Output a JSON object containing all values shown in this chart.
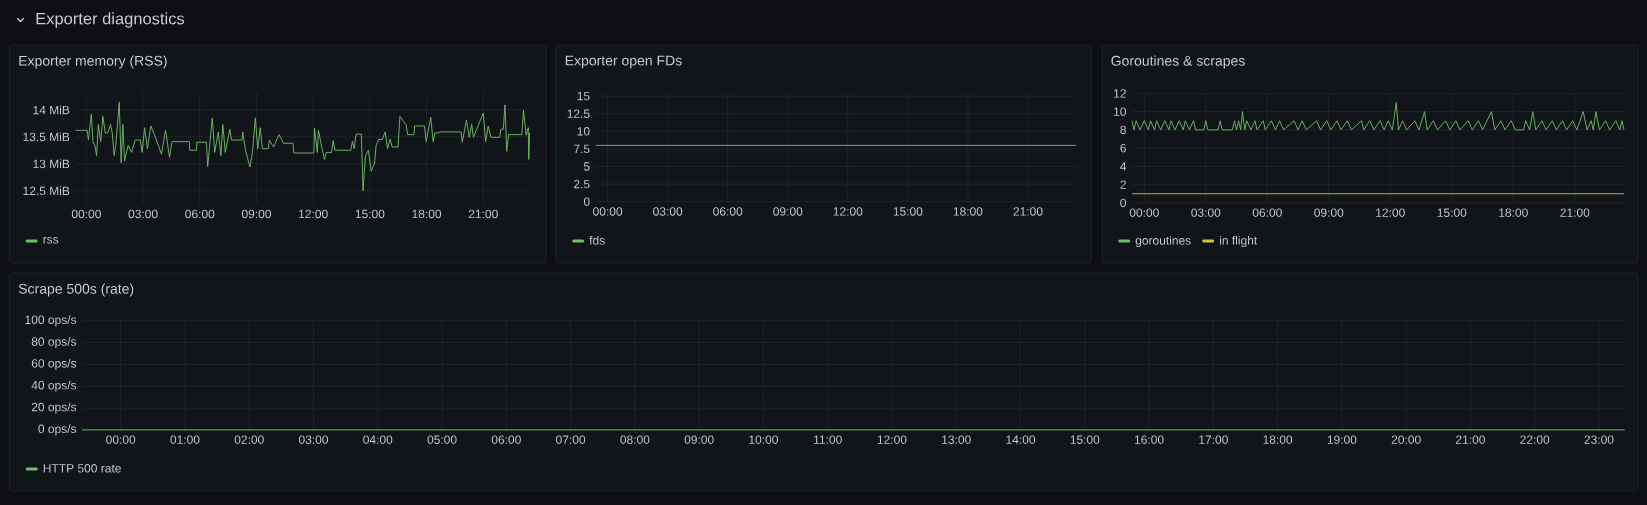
{
  "chart_data": [
    {
      "type": "line",
      "title": "Exporter memory (RSS)",
      "annotations": [
        "Exporter diagnostics"
      ],
      "xlim": [
        -0.58,
        23.49
      ],
      "ylim": [
        12.25,
        14.32
      ],
      "grid": true,
      "legend": "bottom",
      "xticks": [
        {
          "value": 0,
          "label": "00:00"
        },
        {
          "value": 3,
          "label": "03:00"
        },
        {
          "value": 6,
          "label": "06:00"
        },
        {
          "value": 9,
          "label": "09:00"
        },
        {
          "value": 12,
          "label": "12:00"
        },
        {
          "value": 15,
          "label": "15:00"
        },
        {
          "value": 18,
          "label": "18:00"
        },
        {
          "value": 21,
          "label": "21:00"
        }
      ],
      "yticks": [
        {
          "value": 12.5,
          "label": "12.5 MiB"
        },
        {
          "value": 13,
          "label": "13 MiB"
        },
        {
          "value": 13.5,
          "label": "13.5 MiB"
        },
        {
          "value": 14,
          "label": "14 MiB"
        }
      ],
      "series": [
        {
          "name": "rss",
          "color": "#73bf69",
          "x": [
            -0.58,
            0.04,
            0.11,
            0.26,
            0.35,
            0.45,
            0.54,
            0.63,
            0.76,
            0.87,
            1.0,
            1.13,
            1.28,
            1.37,
            1.47,
            1.56,
            1.74,
            1.84,
            1.93,
            2.02,
            2.21,
            2.39,
            2.58,
            2.86,
            2.95,
            3.08,
            3.23,
            3.41,
            3.6,
            3.97,
            4.19,
            4.4,
            4.53,
            5.45,
            5.46,
            5.83,
            5.84,
            6.35,
            6.42,
            6.66,
            6.79,
            6.98,
            7.12,
            7.22,
            7.35,
            7.59,
            7.68,
            8.24,
            8.27,
            8.42,
            8.65,
            8.79,
            8.94,
            9.07,
            9.2,
            9.31,
            9.63,
            9.68,
            9.91,
            10.19,
            10.43,
            10.93,
            10.98,
            12.04,
            12.07,
            12.22,
            12.28,
            12.41,
            12.6,
            12.69,
            12.97,
            13.06,
            13.15,
            13.99,
            14.08,
            14.17,
            14.27,
            14.55,
            14.64,
            14.77,
            14.92,
            15.07,
            15.25,
            15.33,
            15.47,
            15.66,
            15.81,
            15.94,
            16.07,
            16.18,
            16.49,
            16.59,
            16.92,
            17.0,
            17.33,
            17.37,
            17.89,
            17.98,
            18.22,
            18.35,
            18.44,
            18.63,
            18.66,
            19.83,
            19.89,
            20.11,
            20.26,
            20.39,
            20.48,
            21.0,
            21.13,
            21.26,
            21.41,
            21.87,
            21.93,
            22.06,
            22.15,
            22.24,
            22.34,
            23.04,
            23.13,
            23.27,
            23.38,
            23.41,
            23.45
          ],
          "values": [
            13.62,
            13.62,
            13.44,
            13.92,
            13.41,
            13.34,
            13.15,
            13.73,
            13.41,
            13.88,
            13.57,
            13.57,
            13.73,
            13.57,
            13.15,
            13.36,
            14.14,
            13.02,
            13.73,
            13.05,
            13.34,
            13.21,
            13.44,
            13.44,
            13.21,
            13.67,
            13.28,
            13.7,
            13.54,
            13.18,
            13.62,
            13.12,
            13.41,
            13.41,
            13.25,
            13.25,
            13.4,
            13.4,
            12.95,
            13.85,
            13.21,
            13.59,
            13.15,
            13.73,
            13.21,
            13.64,
            13.44,
            13.44,
            13.59,
            13.25,
            12.94,
            13.21,
            13.85,
            13.28,
            13.67,
            13.28,
            13.28,
            13.44,
            13.31,
            13.54,
            13.38,
            13.38,
            13.2,
            13.2,
            13.66,
            13.21,
            13.62,
            13.38,
            13.08,
            13.21,
            13.21,
            13.43,
            13.25,
            13.25,
            13.42,
            13.28,
            13.55,
            13.55,
            12.5,
            13.15,
            13.25,
            12.86,
            13.02,
            13.34,
            13.45,
            13.45,
            13.59,
            13.28,
            13.46,
            13.31,
            13.31,
            13.88,
            13.72,
            13.54,
            13.54,
            13.7,
            13.7,
            13.41,
            13.86,
            13.41,
            13.57,
            13.57,
            13.59,
            13.59,
            13.4,
            13.81,
            13.49,
            13.73,
            13.49,
            13.94,
            13.41,
            13.7,
            13.49,
            13.49,
            13.64,
            13.64,
            14.09,
            13.23,
            13.54,
            13.54,
            13.99,
            13.53,
            13.67,
            13.08,
            13.57
          ]
        }
      ]
    },
    {
      "type": "line",
      "title": "Exporter open FDs",
      "xlim": [
        -0.6,
        23.4
      ],
      "ylim": [
        0,
        15.4
      ],
      "grid": true,
      "legend": "bottom",
      "xticks": [
        {
          "value": 0,
          "label": "00:00"
        },
        {
          "value": 3,
          "label": "03:00"
        },
        {
          "value": 6,
          "label": "06:00"
        },
        {
          "value": 9,
          "label": "09:00"
        },
        {
          "value": 12,
          "label": "12:00"
        },
        {
          "value": 15,
          "label": "15:00"
        },
        {
          "value": 18,
          "label": "18:00"
        },
        {
          "value": 21,
          "label": "21:00"
        }
      ],
      "yticks": [
        0,
        2.5,
        5,
        7.5,
        10,
        12.5,
        15
      ],
      "series": [
        {
          "name": "fds",
          "color": "#73bf69",
          "x": [
            -0.6,
            23.4
          ],
          "values": [
            8,
            8
          ]
        }
      ]
    },
    {
      "type": "line",
      "title": "Goroutines & scrapes",
      "xlim": [
        -0.6,
        23.4
      ],
      "ylim": [
        0,
        12
      ],
      "grid": true,
      "legend": "bottom",
      "xticks": [
        {
          "value": 0,
          "label": "00:00"
        },
        {
          "value": 3,
          "label": "03:00"
        },
        {
          "value": 6,
          "label": "06:00"
        },
        {
          "value": 9,
          "label": "09:00"
        },
        {
          "value": 12,
          "label": "12:00"
        },
        {
          "value": 15,
          "label": "15:00"
        },
        {
          "value": 18,
          "label": "18:00"
        },
        {
          "value": 21,
          "label": "21:00"
        }
      ],
      "yticks": [
        0,
        2,
        4,
        6,
        8,
        10,
        12
      ],
      "series": [
        {
          "name": "goroutines",
          "color": "#73bf69",
          "x": [
            -0.6,
            -0.5,
            -0.4,
            -0.2,
            0.0,
            0.2,
            0.3,
            0.5,
            0.6,
            0.8,
            1.0,
            1.2,
            1.3,
            1.5,
            1.7,
            1.9,
            2.0,
            2.2,
            2.4,
            2.5,
            2.9,
            3.0,
            3.1,
            3.6,
            3.7,
            3.8,
            4.3,
            4.4,
            4.5,
            4.6,
            4.7,
            4.79,
            4.9,
            5.0,
            5.2,
            5.4,
            5.5,
            5.8,
            5.9,
            6.2,
            6.4,
            6.6,
            6.8,
            7.3,
            7.5,
            7.7,
            7.9,
            8.4,
            8.6,
            8.9,
            9.1,
            9.4,
            9.6,
            9.9,
            10.1,
            10.6,
            10.7,
            11.0,
            11.2,
            11.5,
            11.7,
            11.9,
            12.1,
            12.29,
            12.4,
            12.6,
            12.8,
            13.2,
            13.4,
            13.67,
            13.8,
            14.1,
            14.3,
            14.7,
            14.9,
            15.2,
            15.4,
            15.8,
            16.0,
            16.3,
            16.5,
            16.93,
            17.1,
            17.4,
            17.6,
            17.9,
            18.1,
            18.5,
            18.6,
            18.8,
            18.95,
            19.1,
            19.4,
            19.6,
            19.9,
            20.1,
            20.4,
            20.6,
            20.9,
            21.1,
            21.41,
            21.6,
            21.8,
            21.9,
            22.03,
            22.2,
            22.5,
            22.7,
            23.0,
            23.2,
            23.3,
            23.4
          ],
          "values": [
            9,
            8,
            9,
            8,
            9,
            8,
            9,
            8,
            9,
            8,
            9,
            8,
            9,
            8,
            9,
            8,
            9,
            8,
            9,
            8,
            8,
            9,
            8,
            8,
            9,
            8,
            8,
            9,
            8,
            9,
            8,
            10,
            8,
            9,
            8,
            9,
            8,
            9,
            8,
            9,
            8,
            9,
            8,
            9,
            8,
            9,
            8,
            9,
            8,
            9,
            8,
            9,
            8,
            9,
            8,
            9,
            8,
            9,
            8,
            9,
            8,
            9,
            8,
            11,
            8,
            9,
            8,
            9,
            8,
            10,
            8,
            9,
            8,
            9,
            8,
            9,
            8,
            9,
            8,
            9,
            8,
            10,
            8,
            9,
            8,
            9,
            8,
            8,
            9,
            8,
            10,
            8,
            9,
            8,
            9,
            8,
            9,
            8,
            9,
            8,
            10,
            8,
            9,
            8,
            10,
            8,
            9,
            8,
            9,
            8,
            9,
            8
          ]
        },
        {
          "name": "in flight",
          "color": "#d9c13c",
          "x": [
            -0.6,
            23.4
          ],
          "values": [
            1,
            1
          ]
        }
      ]
    },
    {
      "type": "line",
      "title": "Scrape 500s (rate)",
      "xlim": [
        -0.6,
        23.4
      ],
      "ylim": [
        0,
        100
      ],
      "grid": true,
      "legend": "bottom",
      "xticks": [
        {
          "value": 0,
          "label": "00:00"
        },
        {
          "value": 1,
          "label": "01:00"
        },
        {
          "value": 2,
          "label": "02:00"
        },
        {
          "value": 3,
          "label": "03:00"
        },
        {
          "value": 4,
          "label": "04:00"
        },
        {
          "value": 5,
          "label": "05:00"
        },
        {
          "value": 6,
          "label": "06:00"
        },
        {
          "value": 7,
          "label": "07:00"
        },
        {
          "value": 8,
          "label": "08:00"
        },
        {
          "value": 9,
          "label": "09:00"
        },
        {
          "value": 10,
          "label": "10:00"
        },
        {
          "value": 11,
          "label": "11:00"
        },
        {
          "value": 12,
          "label": "12:00"
        },
        {
          "value": 13,
          "label": "13:00"
        },
        {
          "value": 14,
          "label": "14:00"
        },
        {
          "value": 15,
          "label": "15:00"
        },
        {
          "value": 16,
          "label": "16:00"
        },
        {
          "value": 17,
          "label": "17:00"
        },
        {
          "value": 18,
          "label": "18:00"
        },
        {
          "value": 19,
          "label": "19:00"
        },
        {
          "value": 20,
          "label": "20:00"
        },
        {
          "value": 21,
          "label": "21:00"
        },
        {
          "value": 22,
          "label": "22:00"
        },
        {
          "value": 23,
          "label": "23:00"
        }
      ],
      "yticks": [
        {
          "value": 0,
          "label": "0 ops/s"
        },
        {
          "value": 20,
          "label": "20 ops/s"
        },
        {
          "value": 40,
          "label": "40 ops/s"
        },
        {
          "value": 60,
          "label": "60 ops/s"
        },
        {
          "value": 80,
          "label": "80 ops/s"
        },
        {
          "value": 100,
          "label": "100 ops/s"
        }
      ],
      "series": [
        {
          "name": "HTTP 500 rate",
          "color": "#73bf69",
          "x": [
            -0.6,
            23.4
          ],
          "values": [
            0,
            0
          ]
        }
      ]
    }
  ]
}
